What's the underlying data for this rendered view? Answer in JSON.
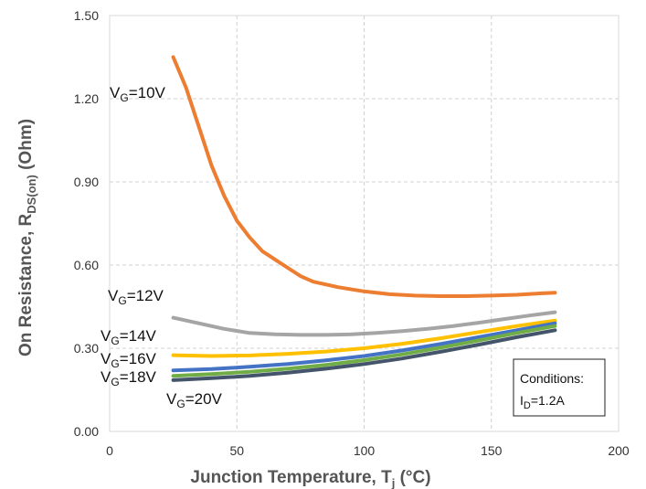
{
  "chart_data": {
    "type": "line",
    "xlabel": "Junction Temperature, T",
    "xlabel_sub": "j",
    "xlabel_unit": " (°C)",
    "ylabel": "On Resistance, R",
    "ylabel_sub": "DS(on)",
    "ylabel_unit": " (Ohm)",
    "xlim": [
      0,
      200
    ],
    "ylim": [
      0,
      1.5
    ],
    "x_ticks": [
      "0",
      "50",
      "100",
      "150",
      "200"
    ],
    "y_ticks": [
      "0.00",
      "0.30",
      "0.60",
      "0.90",
      "1.20",
      "1.50"
    ],
    "grid": "dashed",
    "series": [
      {
        "name": "V",
        "name_sub": "G",
        "name_value": "=10V",
        "color": "#ED7D31",
        "points": [
          [
            25,
            1.35
          ],
          [
            30,
            1.24
          ],
          [
            35,
            1.1
          ],
          [
            40,
            0.96
          ],
          [
            45,
            0.85
          ],
          [
            50,
            0.76
          ],
          [
            55,
            0.7
          ],
          [
            60,
            0.65
          ],
          [
            65,
            0.62
          ],
          [
            70,
            0.59
          ],
          [
            75,
            0.56
          ],
          [
            80,
            0.54
          ],
          [
            90,
            0.52
          ],
          [
            100,
            0.505
          ],
          [
            110,
            0.495
          ],
          [
            120,
            0.49
          ],
          [
            130,
            0.488
          ],
          [
            140,
            0.488
          ],
          [
            150,
            0.49
          ],
          [
            160,
            0.493
          ],
          [
            170,
            0.498
          ],
          [
            175,
            0.5
          ]
        ]
      },
      {
        "name": "V",
        "name_sub": "G",
        "name_value": "=12V",
        "color": "#A5A5A5",
        "points": [
          [
            25,
            0.41
          ],
          [
            35,
            0.39
          ],
          [
            45,
            0.37
          ],
          [
            55,
            0.355
          ],
          [
            65,
            0.35
          ],
          [
            75,
            0.348
          ],
          [
            85,
            0.348
          ],
          [
            95,
            0.35
          ],
          [
            105,
            0.355
          ],
          [
            115,
            0.362
          ],
          [
            125,
            0.37
          ],
          [
            135,
            0.38
          ],
          [
            145,
            0.392
          ],
          [
            155,
            0.405
          ],
          [
            165,
            0.418
          ],
          [
            175,
            0.43
          ]
        ]
      },
      {
        "name": "V",
        "name_sub": "G",
        "name_value": "=14V",
        "color": "#FFC000",
        "points": [
          [
            25,
            0.275
          ],
          [
            40,
            0.272
          ],
          [
            55,
            0.274
          ],
          [
            70,
            0.28
          ],
          [
            85,
            0.288
          ],
          [
            100,
            0.3
          ],
          [
            115,
            0.316
          ],
          [
            130,
            0.336
          ],
          [
            145,
            0.358
          ],
          [
            160,
            0.38
          ],
          [
            175,
            0.4
          ]
        ]
      },
      {
        "name": "V",
        "name_sub": "G",
        "name_value": "=16V",
        "color": "#4472C4",
        "points": [
          [
            25,
            0.22
          ],
          [
            40,
            0.225
          ],
          [
            55,
            0.233
          ],
          [
            70,
            0.243
          ],
          [
            85,
            0.256
          ],
          [
            100,
            0.272
          ],
          [
            115,
            0.292
          ],
          [
            130,
            0.315
          ],
          [
            145,
            0.34
          ],
          [
            160,
            0.365
          ],
          [
            175,
            0.39
          ]
        ]
      },
      {
        "name": "V",
        "name_sub": "G",
        "name_value": "=18V",
        "color": "#70AD47",
        "points": [
          [
            25,
            0.2
          ],
          [
            40,
            0.207
          ],
          [
            55,
            0.215
          ],
          [
            70,
            0.226
          ],
          [
            85,
            0.24
          ],
          [
            100,
            0.257
          ],
          [
            115,
            0.278
          ],
          [
            130,
            0.302
          ],
          [
            145,
            0.328
          ],
          [
            160,
            0.355
          ],
          [
            175,
            0.38
          ]
        ]
      },
      {
        "name": "V",
        "name_sub": "G",
        "name_value": "=20V",
        "color": "#44546A",
        "points": [
          [
            25,
            0.185
          ],
          [
            40,
            0.192
          ],
          [
            55,
            0.2
          ],
          [
            70,
            0.212
          ],
          [
            85,
            0.226
          ],
          [
            100,
            0.243
          ],
          [
            115,
            0.263
          ],
          [
            130,
            0.287
          ],
          [
            145,
            0.313
          ],
          [
            160,
            0.34
          ],
          [
            175,
            0.365
          ]
        ]
      }
    ],
    "annotation": {
      "title": "Conditions:",
      "line_main": "I",
      "line_sub": "D",
      "line_value": "=1.2A"
    }
  }
}
